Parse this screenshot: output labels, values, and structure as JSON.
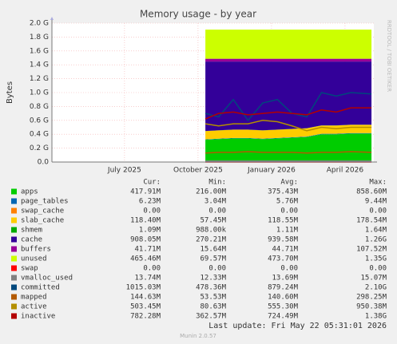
{
  "chart_data": {
    "type": "area",
    "title": "Memory usage - by year",
    "ylabel": "Bytes",
    "watermark": "RRDTOOL / TOBI OETIKER",
    "xlim": [
      2025.253,
      2026.348
    ],
    "xticks": [
      {
        "value": 2025.5,
        "label": "July 2025"
      },
      {
        "value": 2025.75,
        "label": "October 2025"
      },
      {
        "value": 2026.0,
        "label": "January 2026"
      },
      {
        "value": 2026.25,
        "label": "April 2026"
      }
    ],
    "ylim": [
      0,
      2.0
    ],
    "yticks": [
      {
        "value": 0,
        "label": "0.0"
      },
      {
        "value": 0.2,
        "label": "0.2 G"
      },
      {
        "value": 0.4,
        "label": "0.4 G"
      },
      {
        "value": 0.6,
        "label": "0.6 G"
      },
      {
        "value": 0.8,
        "label": "0.8 G"
      },
      {
        "value": 1.0,
        "label": "1.0 G"
      },
      {
        "value": 1.2,
        "label": "1.2 G"
      },
      {
        "value": 1.4,
        "label": "1.4 G"
      },
      {
        "value": 1.6,
        "label": "1.6 G"
      },
      {
        "value": 1.8,
        "label": "1.8 G"
      },
      {
        "value": 2.0,
        "label": "2.0 G"
      }
    ],
    "grid": true,
    "x": [
      2025.775,
      2025.82,
      2025.87,
      2025.92,
      2025.97,
      2026.02,
      2026.07,
      2026.12,
      2026.17,
      2026.22,
      2026.27,
      2026.34
    ],
    "legend_headers": [
      "Cur:",
      "Min:",
      "Avg:",
      "Max:"
    ],
    "series": [
      {
        "name": "apps",
        "kind": "area",
        "color": "#00cc00",
        "values": [
          0.32,
          0.33,
          0.34,
          0.34,
          0.33,
          0.34,
          0.35,
          0.36,
          0.4,
          0.4,
          0.41,
          0.41
        ],
        "stats": [
          "417.91M",
          "216.00M",
          "375.43M",
          "858.60M"
        ]
      },
      {
        "name": "page_tables",
        "kind": "area",
        "color": "#0066b3",
        "values": [
          0.006,
          0.006,
          0.006,
          0.006,
          0.006,
          0.006,
          0.006,
          0.006,
          0.006,
          0.006,
          0.006,
          0.006
        ],
        "stats": [
          "6.23M",
          "3.04M",
          "5.76M",
          "9.44M"
        ]
      },
      {
        "name": "swap_cache",
        "kind": "area",
        "color": "#ff8000",
        "values": [
          0,
          0,
          0,
          0,
          0,
          0,
          0,
          0,
          0,
          0,
          0,
          0
        ],
        "stats": [
          "0.00",
          "0.00",
          "0.00",
          "0.00"
        ]
      },
      {
        "name": "slab_cache",
        "kind": "area",
        "color": "#ffcc00",
        "values": [
          0.12,
          0.12,
          0.12,
          0.12,
          0.12,
          0.12,
          0.12,
          0.12,
          0.12,
          0.12,
          0.12,
          0.12
        ],
        "stats": [
          "118.40M",
          "57.45M",
          "118.55M",
          "178.54M"
        ]
      },
      {
        "name": "shmem",
        "kind": "area",
        "color": "#00aa00",
        "values": [
          0.001,
          0.001,
          0.001,
          0.001,
          0.001,
          0.001,
          0.001,
          0.001,
          0.001,
          0.001,
          0.001,
          0.001
        ],
        "stats": [
          "1.09M",
          "988.00k",
          "1.11M",
          "1.64M"
        ]
      },
      {
        "name": "cache",
        "kind": "area",
        "color": "#330099",
        "values": [
          1.0,
          0.99,
          0.98,
          0.98,
          0.99,
          0.98,
          0.97,
          0.96,
          0.92,
          0.92,
          0.91,
          0.91
        ],
        "stats": [
          "908.05M",
          "270.21M",
          "939.58M",
          "1.26G"
        ]
      },
      {
        "name": "buffers",
        "kind": "area",
        "color": "#990099",
        "values": [
          0.04,
          0.04,
          0.04,
          0.04,
          0.04,
          0.04,
          0.04,
          0.04,
          0.04,
          0.04,
          0.04,
          0.04
        ],
        "stats": [
          "41.71M",
          "15.64M",
          "44.71M",
          "107.52M"
        ]
      },
      {
        "name": "unused",
        "kind": "area",
        "color": "#ccff00",
        "values": [
          0.42,
          0.42,
          0.42,
          0.42,
          0.42,
          0.42,
          0.42,
          0.42,
          0.42,
          0.42,
          0.42,
          0.42
        ],
        "stats": [
          "465.46M",
          "69.57M",
          "473.70M",
          "1.35G"
        ]
      },
      {
        "name": "swap",
        "kind": "line",
        "color": "#ff0000",
        "values": [
          0,
          0,
          0,
          0,
          0,
          0,
          0,
          0,
          0,
          0,
          0,
          0
        ],
        "stats": [
          "0.00",
          "0.00",
          "0.00",
          "0.00"
        ]
      },
      {
        "name": "vmalloc_used",
        "kind": "line",
        "color": "#808080",
        "values": [
          0.014,
          0.014,
          0.014,
          0.014,
          0.014,
          0.014,
          0.014,
          0.014,
          0.014,
          0.014,
          0.014,
          0.014
        ],
        "stats": [
          "13.74M",
          "12.33M",
          "13.69M",
          "15.07M"
        ]
      },
      {
        "name": "committed",
        "kind": "line",
        "color": "#00487d",
        "values": [
          0.7,
          0.65,
          0.9,
          0.6,
          0.85,
          0.9,
          0.7,
          0.65,
          1.0,
          0.95,
          1.0,
          0.98
        ],
        "stats": [
          "1015.03M",
          "478.36M",
          "879.24M",
          "2.10G"
        ]
      },
      {
        "name": "mapped",
        "kind": "line",
        "color": "#b35a00",
        "values": [
          0.13,
          0.14,
          0.14,
          0.15,
          0.14,
          0.14,
          0.14,
          0.13,
          0.14,
          0.14,
          0.15,
          0.14
        ],
        "stats": [
          "144.63M",
          "53.53M",
          "140.60M",
          "298.25M"
        ]
      },
      {
        "name": "active",
        "kind": "line",
        "color": "#b38f00",
        "values": [
          0.55,
          0.52,
          0.55,
          0.55,
          0.6,
          0.58,
          0.52,
          0.45,
          0.5,
          0.48,
          0.5,
          0.5
        ],
        "stats": [
          "503.45M",
          "80.63M",
          "555.30M",
          "950.38M"
        ]
      },
      {
        "name": "inactive",
        "kind": "line",
        "color": "#b30000",
        "values": [
          0.62,
          0.7,
          0.72,
          0.68,
          0.7,
          0.72,
          0.7,
          0.68,
          0.75,
          0.72,
          0.78,
          0.78
        ],
        "stats": [
          "782.28M",
          "362.57M",
          "724.49M",
          "1.38G"
        ]
      }
    ],
    "footer": "Last update: Fri May 22 05:31:01 2026",
    "credit": "Munin 2.0.57"
  }
}
